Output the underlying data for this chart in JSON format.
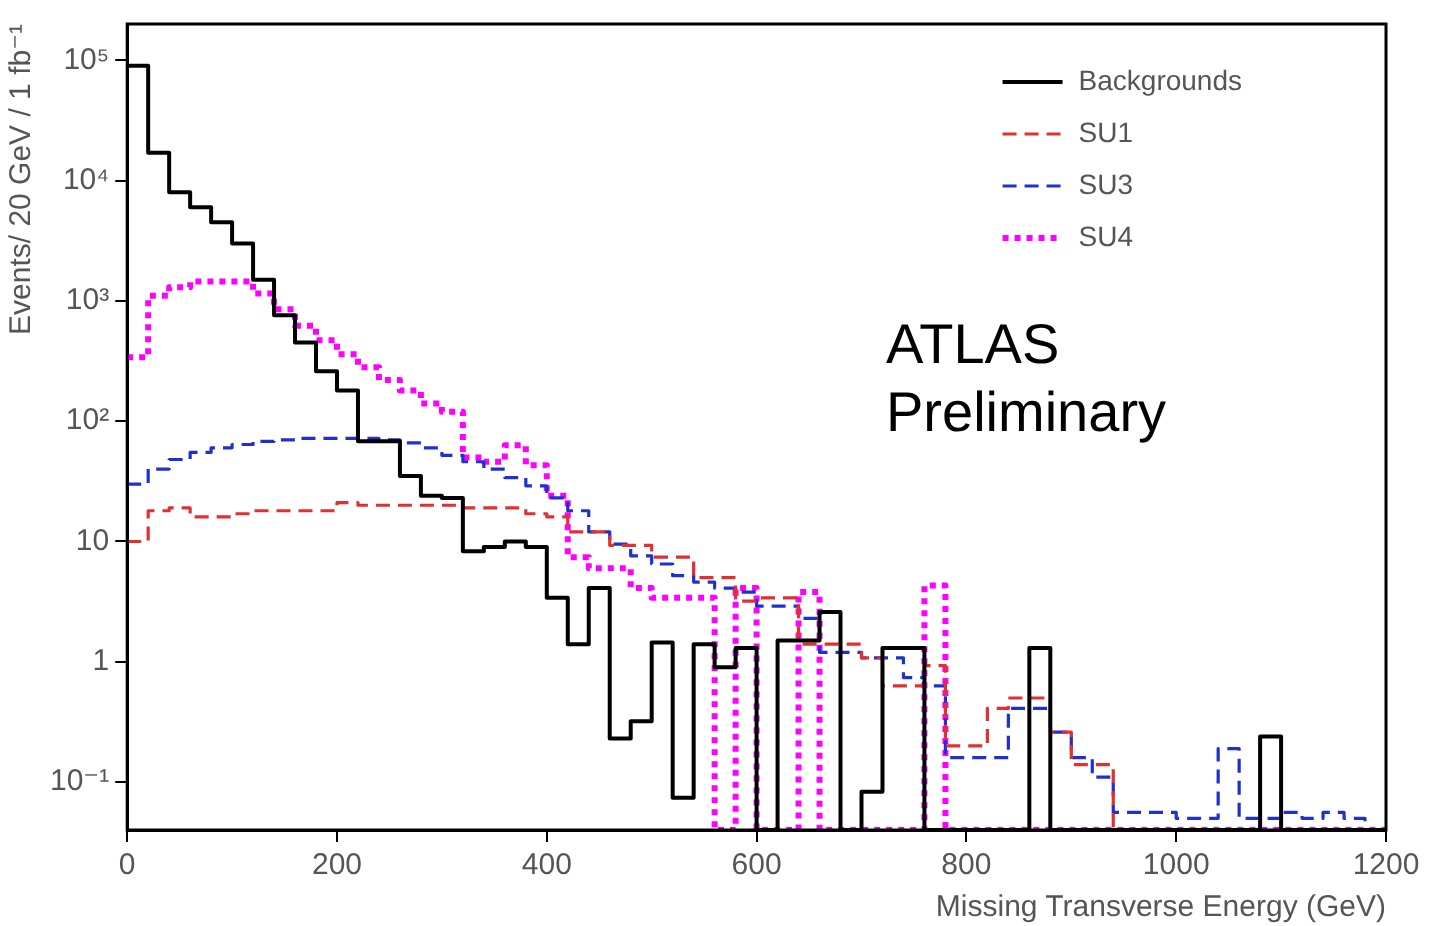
{
  "chart_data": {
    "type": "histogram",
    "xlabel": "Missing Transverse Energy (GeV)",
    "ylabel": "Events/ 20 GeV / 1 fb⁻¹",
    "annotations": [
      "ATLAS Preliminary"
    ],
    "bins": [
      0,
      20,
      40,
      60,
      80,
      100,
      120,
      140,
      160,
      180,
      200,
      220,
      240,
      260,
      280,
      300,
      320,
      340,
      360,
      380,
      400,
      420,
      440,
      460,
      480,
      500,
      520,
      540,
      560,
      580,
      600,
      620,
      640,
      660,
      680,
      700,
      720,
      740,
      760,
      780,
      800,
      820,
      840,
      860,
      880,
      900,
      920,
      940,
      960,
      980,
      1000,
      1020,
      1040,
      1060,
      1080,
      1100,
      1120,
      1140,
      1160,
      1180,
      1200
    ],
    "series": [
      {
        "name": "Backgrounds",
        "color": "#000000",
        "line_style": "solid",
        "values": [
          90000,
          17000,
          8000,
          6000,
          4500,
          3000,
          1500,
          760,
          450,
          260,
          180,
          68,
          68,
          35,
          24,
          23,
          8.3,
          9,
          10,
          9,
          3.4,
          1.4,
          4.1,
          0.23,
          0.32,
          1.45,
          0.074,
          1.4,
          0.9,
          1.3,
          null,
          1.5,
          1.5,
          2.6,
          null,
          0.083,
          1.3,
          1.3,
          null,
          null,
          null,
          null,
          null,
          1.3,
          null,
          null,
          null,
          null,
          null,
          null,
          null,
          null,
          null,
          null,
          0.24,
          null,
          null,
          null,
          null,
          null
        ]
      },
      {
        "name": "SU1",
        "color": "#e03030",
        "line_style": "dashed",
        "values": [
          10,
          18,
          19,
          16,
          16,
          17,
          18,
          18,
          18,
          18,
          21,
          20,
          20,
          20,
          20,
          20,
          19,
          19,
          19,
          17,
          16,
          12,
          12,
          9.3,
          9.3,
          7.4,
          7.4,
          5,
          5,
          3.2,
          3.4,
          3.4,
          1.4,
          1.4,
          1.4,
          1.08,
          0.63,
          0.63,
          0.93,
          0.2,
          0.2,
          0.41,
          0.5,
          0.5,
          0.26,
          0.14,
          0.14,
          null,
          null,
          null,
          null,
          null,
          null,
          null,
          null,
          null,
          null,
          null,
          null,
          null
        ]
      },
      {
        "name": "SU3",
        "color": "#2030d0",
        "line_style": "dashed",
        "values": [
          30,
          40,
          48,
          55,
          60,
          64,
          68,
          70,
          72,
          72,
          72,
          72,
          70,
          66,
          60,
          52,
          46,
          40,
          34,
          29,
          23,
          18,
          12,
          9.5,
          7.6,
          6.5,
          5.2,
          4.6,
          4.1,
          3.8,
          2.9,
          2.9,
          2.3,
          1.2,
          1.2,
          1.08,
          1.08,
          0.74,
          0.63,
          0.16,
          0.16,
          0.16,
          0.41,
          0.41,
          0.26,
          0.16,
          0.11,
          0.056,
          0.056,
          0.056,
          0.05,
          0.05,
          0.19,
          0.05,
          0.05,
          0.056,
          0.05,
          0.056,
          0.05,
          null
        ]
      },
      {
        "name": "SU4",
        "color": "#ff00ff",
        "line_style": "dotted",
        "values": [
          340,
          1100,
          1300,
          1450,
          1450,
          1450,
          1150,
          850,
          620,
          470,
          360,
          280,
          220,
          180,
          140,
          120,
          50,
          46,
          63,
          43,
          24,
          7.4,
          6,
          6,
          4.1,
          3.4,
          3.4,
          3.4,
          null,
          4.1,
          null,
          null,
          3.8,
          null,
          null,
          null,
          null,
          null,
          4.3,
          null,
          null,
          null,
          null,
          null,
          null,
          null,
          null,
          null,
          null,
          null,
          null,
          null,
          null,
          null,
          null,
          null,
          null,
          null,
          null,
          null
        ]
      }
    ],
    "xlim": [
      0,
      1200
    ],
    "xticks": [
      0,
      200,
      400,
      600,
      800,
      1000,
      1200
    ],
    "ylim": [
      0.04,
      200000
    ],
    "yticks": [
      {
        "value": 0.1,
        "label": "10⁻¹"
      },
      1,
      10,
      {
        "value": 100,
        "label": "10²"
      },
      {
        "value": 1000,
        "label": "10³"
      },
      {
        "value": 10000,
        "label": "10⁴"
      },
      {
        "value": 100000,
        "label": "10⁵"
      }
    ],
    "log": true,
    "grid": false,
    "legend": "top right"
  }
}
